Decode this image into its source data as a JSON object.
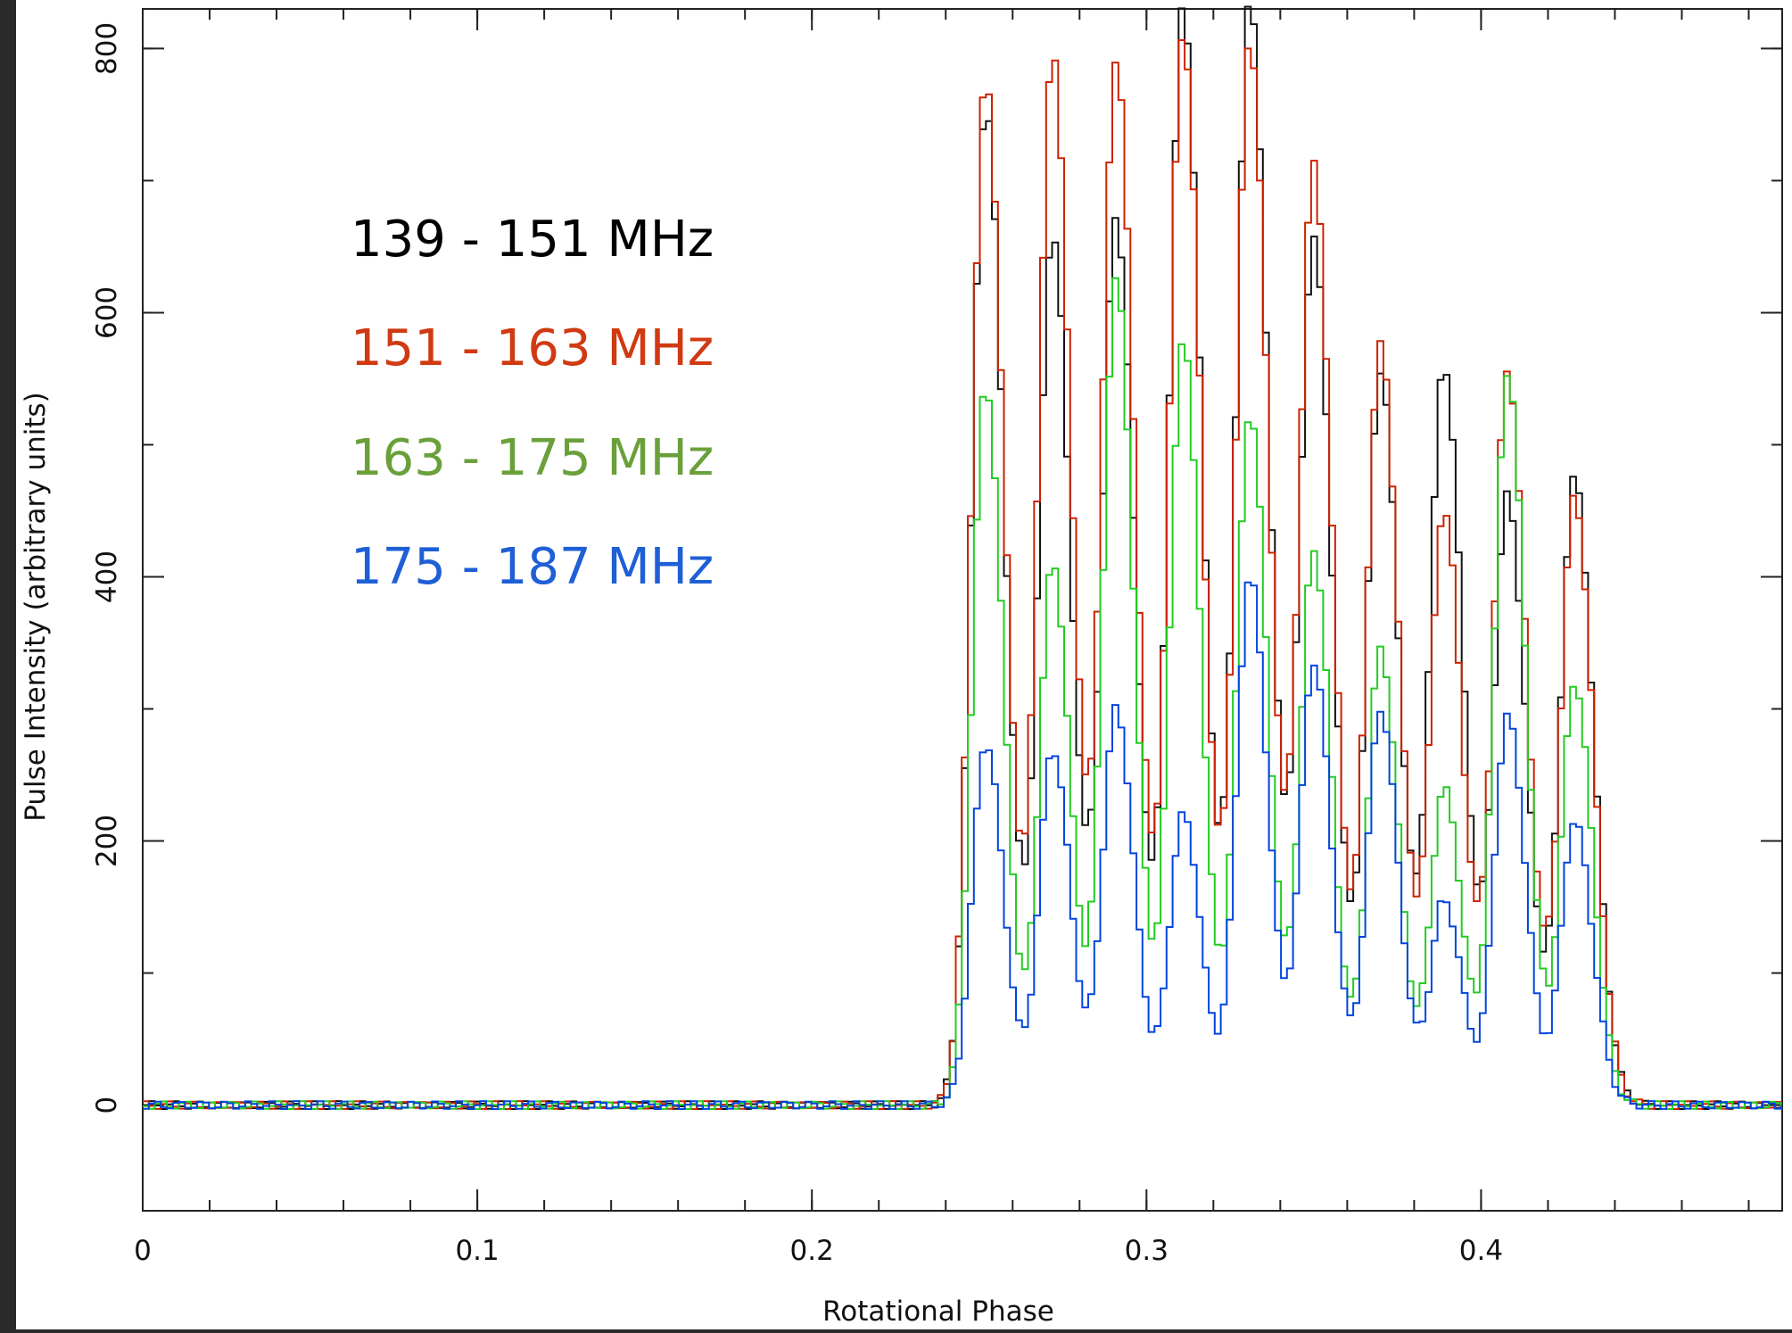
{
  "chart_data": {
    "type": "line",
    "title": "",
    "xlabel": "Rotational Phase",
    "ylabel": "Pulse Intensity (arbitrary units)",
    "xlim": [
      0,
      0.49
    ],
    "ylim": [
      -80,
      830
    ],
    "x_ticks": [
      {
        "value": 0,
        "label": "0"
      },
      {
        "value": 0.1,
        "label": "0.1"
      },
      {
        "value": 0.2,
        "label": "0.2"
      },
      {
        "value": 0.3,
        "label": "0.3"
      },
      {
        "value": 0.4,
        "label": "0.4"
      }
    ],
    "y_ticks": [
      {
        "value": 0,
        "label": "0"
      },
      {
        "value": 200,
        "label": "200"
      },
      {
        "value": 400,
        "label": "400"
      },
      {
        "value": 600,
        "label": "600"
      },
      {
        "value": 800,
        "label": "800"
      }
    ],
    "x_minor_step": 0.02,
    "y_minor_step": 100,
    "grid": false,
    "legend_position": "top-left",
    "peak_phases": [
      0.251,
      0.271,
      0.29,
      0.31,
      0.33,
      0.349,
      0.369,
      0.388,
      0.407,
      0.427
    ],
    "series": [
      {
        "name": "139 - 151 MHz",
        "color": "#111111",
        "peaks": [
          755,
          660,
          670,
          830,
          835,
          655,
          555,
          560,
          460,
          475
        ],
        "width": 0.0042
      },
      {
        "name": "151 - 163 MHz",
        "color": "#cc2200",
        "peaks": [
          775,
          795,
          790,
          810,
          805,
          710,
          575,
          450,
          555,
          460
        ],
        "width": 0.0042
      },
      {
        "name": "163 - 175 MHz",
        "color": "#22cc22",
        "peaks": [
          545,
          410,
          625,
          580,
          525,
          420,
          345,
          240,
          555,
          320
        ],
        "width": 0.004
      },
      {
        "name": "175 - 187 MHz",
        "color": "#0044dd",
        "peaks": [
          275,
          270,
          300,
          220,
          400,
          335,
          300,
          155,
          295,
          215
        ],
        "width": 0.004
      }
    ]
  },
  "legend": {
    "entries": [
      {
        "label": "139 - 151 MHz",
        "color": "#000000"
      },
      {
        "label": "151 - 163 MHz",
        "color": "#d03a12"
      },
      {
        "label": "163 - 175 MHz",
        "color": "#6aa03a"
      },
      {
        "label": "175 - 187 MHz",
        "color": "#1f5fd6"
      }
    ]
  }
}
